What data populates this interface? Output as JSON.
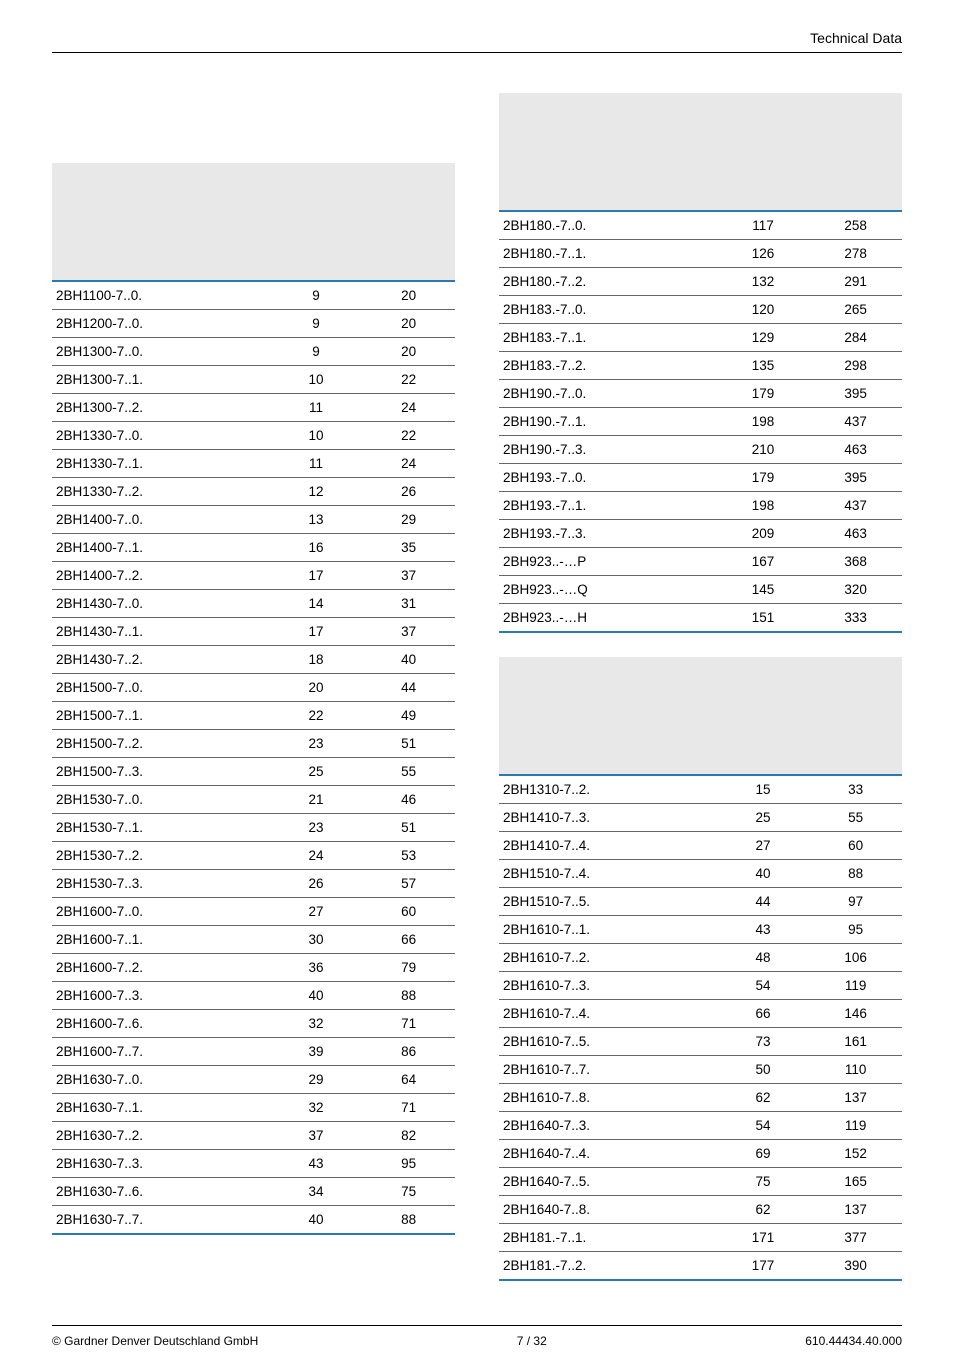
{
  "header": {
    "title": "Technical Data"
  },
  "footer": {
    "left": "© Gardner Denver Deutschland GmbH",
    "center": "7 / 32",
    "right": "610.44434.40.000"
  },
  "table1": {
    "rows": [
      [
        "2BH1100-7..0.",
        "9",
        "20"
      ],
      [
        "2BH1200-7..0.",
        "9",
        "20"
      ],
      [
        "2BH1300-7..0.",
        "9",
        "20"
      ],
      [
        "2BH1300-7..1.",
        "10",
        "22"
      ],
      [
        "2BH1300-7..2.",
        "11",
        "24"
      ],
      [
        "2BH1330-7..0.",
        "10",
        "22"
      ],
      [
        "2BH1330-7..1.",
        "11",
        "24"
      ],
      [
        "2BH1330-7..2.",
        "12",
        "26"
      ],
      [
        "2BH1400-7..0.",
        "13",
        "29"
      ],
      [
        "2BH1400-7..1.",
        "16",
        "35"
      ],
      [
        "2BH1400-7..2.",
        "17",
        "37"
      ],
      [
        "2BH1430-7..0.",
        "14",
        "31"
      ],
      [
        "2BH1430-7..1.",
        "17",
        "37"
      ],
      [
        "2BH1430-7..2.",
        "18",
        "40"
      ],
      [
        "2BH1500-7..0.",
        "20",
        "44"
      ],
      [
        "2BH1500-7..1.",
        "22",
        "49"
      ],
      [
        "2BH1500-7..2.",
        "23",
        "51"
      ],
      [
        "2BH1500-7..3.",
        "25",
        "55"
      ],
      [
        "2BH1530-7..0.",
        "21",
        "46"
      ],
      [
        "2BH1530-7..1.",
        "23",
        "51"
      ],
      [
        "2BH1530-7..2.",
        "24",
        "53"
      ],
      [
        "2BH1530-7..3.",
        "26",
        "57"
      ],
      [
        "2BH1600-7..0.",
        "27",
        "60"
      ],
      [
        "2BH1600-7..1.",
        "30",
        "66"
      ],
      [
        "2BH1600-7..2.",
        "36",
        "79"
      ],
      [
        "2BH1600-7..3.",
        "40",
        "88"
      ],
      [
        "2BH1600-7..6.",
        "32",
        "71"
      ],
      [
        "2BH1600-7..7.",
        "39",
        "86"
      ],
      [
        "2BH1630-7..0.",
        "29",
        "64"
      ],
      [
        "2BH1630-7..1.",
        "32",
        "71"
      ],
      [
        "2BH1630-7..2.",
        "37",
        "82"
      ],
      [
        "2BH1630-7..3.",
        "43",
        "95"
      ],
      [
        "2BH1630-7..6.",
        "34",
        "75"
      ],
      [
        "2BH1630-7..7.",
        "40",
        "88"
      ]
    ]
  },
  "table2": {
    "rows": [
      [
        "2BH180.-7..0.",
        "117",
        "258"
      ],
      [
        "2BH180.-7..1.",
        "126",
        "278"
      ],
      [
        "2BH180.-7..2.",
        "132",
        "291"
      ],
      [
        "2BH183.-7..0.",
        "120",
        "265"
      ],
      [
        "2BH183.-7..1.",
        "129",
        "284"
      ],
      [
        "2BH183.-7..2.",
        "135",
        "298"
      ],
      [
        "2BH190.-7..0.",
        "179",
        "395"
      ],
      [
        "2BH190.-7..1.",
        "198",
        "437"
      ],
      [
        "2BH190.-7..3.",
        "210",
        "463"
      ],
      [
        "2BH193.-7..0.",
        "179",
        "395"
      ],
      [
        "2BH193.-7..1.",
        "198",
        "437"
      ],
      [
        "2BH193.-7..3.",
        "209",
        "463"
      ],
      [
        "2BH923..-…P",
        "167",
        "368"
      ],
      [
        "2BH923..-…Q",
        "145",
        "320"
      ],
      [
        "2BH923..-…H",
        "151",
        "333"
      ]
    ]
  },
  "table3": {
    "rows": [
      [
        "2BH1310-7..2.",
        "15",
        "33"
      ],
      [
        "2BH1410-7..3.",
        "25",
        "55"
      ],
      [
        "2BH1410-7..4.",
        "27",
        "60"
      ],
      [
        "2BH1510-7..4.",
        "40",
        "88"
      ],
      [
        "2BH1510-7..5.",
        "44",
        "97"
      ],
      [
        "2BH1610-7..1.",
        "43",
        "95"
      ],
      [
        "2BH1610-7..2.",
        "48",
        "106"
      ],
      [
        "2BH1610-7..3.",
        "54",
        "119"
      ],
      [
        "2BH1610-7..4.",
        "66",
        "146"
      ],
      [
        "2BH1610-7..5.",
        "73",
        "161"
      ],
      [
        "2BH1610-7..7.",
        "50",
        "110"
      ],
      [
        "2BH1610-7..8.",
        "62",
        "137"
      ],
      [
        "2BH1640-7..3.",
        "54",
        "119"
      ],
      [
        "2BH1640-7..4.",
        "69",
        "152"
      ],
      [
        "2BH1640-7..5.",
        "75",
        "165"
      ],
      [
        "2BH1640-7..8.",
        "62",
        "137"
      ],
      [
        "2BH181.-7..1.",
        "171",
        "377"
      ],
      [
        "2BH181.-7..2.",
        "177",
        "390"
      ]
    ]
  }
}
